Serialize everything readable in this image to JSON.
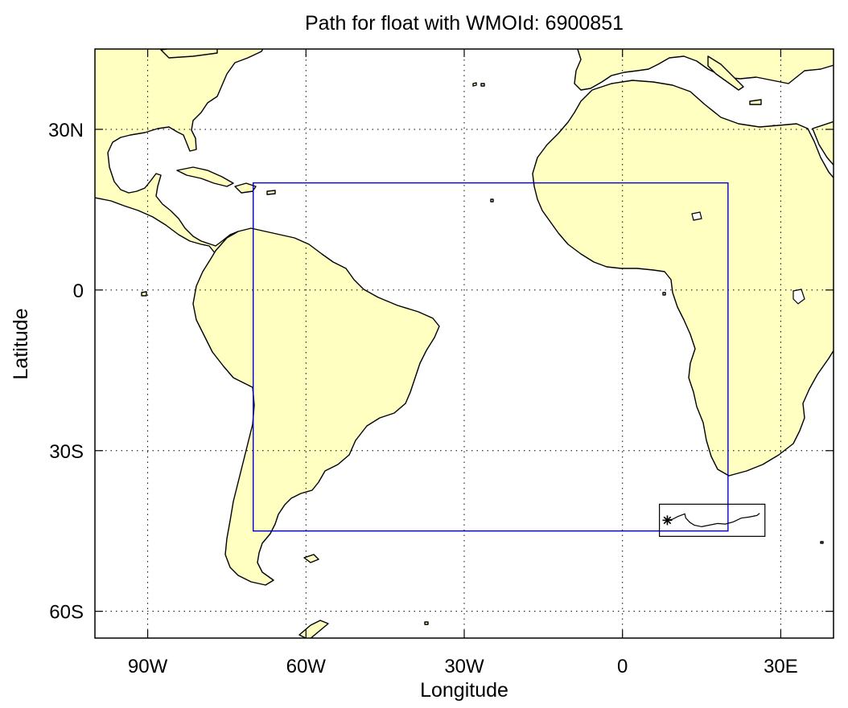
{
  "title": "Path for float with WMOId: 6900851",
  "xlabel": "Longitude",
  "ylabel": "Latitude",
  "colors": {
    "land": "#ffffc2",
    "ocean": "#ffffff",
    "region_box": "#0000cc",
    "float_box": "#000000"
  },
  "map": {
    "lon_range": [
      -100,
      40
    ],
    "lat_range": [
      -65,
      45
    ],
    "grid": true
  },
  "x_ticks": [
    {
      "value": -90,
      "label": "90W"
    },
    {
      "value": -60,
      "label": "60W"
    },
    {
      "value": -30,
      "label": "30W"
    },
    {
      "value": 0,
      "label": "0"
    },
    {
      "value": 30,
      "label": "30E"
    }
  ],
  "y_ticks": [
    {
      "value": 30,
      "label": "30N"
    },
    {
      "value": 0,
      "label": "0"
    },
    {
      "value": -30,
      "label": "30S"
    },
    {
      "value": -60,
      "label": "60S"
    }
  ],
  "region_box": {
    "lon": [
      -70,
      20
    ],
    "lat": [
      -45,
      20
    ]
  },
  "float_box": {
    "lon": [
      7,
      27
    ],
    "lat": [
      -46,
      -40
    ]
  },
  "float_path": {
    "start_marker": "asterisk",
    "start": {
      "lon": 8.5,
      "lat": -43
    },
    "points": [
      {
        "lon": 8.5,
        "lat": -43
      },
      {
        "lon": 9.5,
        "lat": -42.8
      },
      {
        "lon": 10.5,
        "lat": -42.3
      },
      {
        "lon": 11.8,
        "lat": -41.8
      },
      {
        "lon": 12.0,
        "lat": -42.6
      },
      {
        "lon": 12.8,
        "lat": -43.4
      },
      {
        "lon": 13.6,
        "lat": -43.9
      },
      {
        "lon": 15.0,
        "lat": -44.2
      },
      {
        "lon": 16.5,
        "lat": -43.9
      },
      {
        "lon": 18.0,
        "lat": -43.6
      },
      {
        "lon": 19.5,
        "lat": -43.7
      },
      {
        "lon": 21.0,
        "lat": -43.3
      },
      {
        "lon": 22.5,
        "lat": -42.6
      },
      {
        "lon": 24.0,
        "lat": -42.4
      },
      {
        "lon": 25.5,
        "lat": -42.1
      },
      {
        "lon": 26.0,
        "lat": -41.7
      }
    ]
  }
}
